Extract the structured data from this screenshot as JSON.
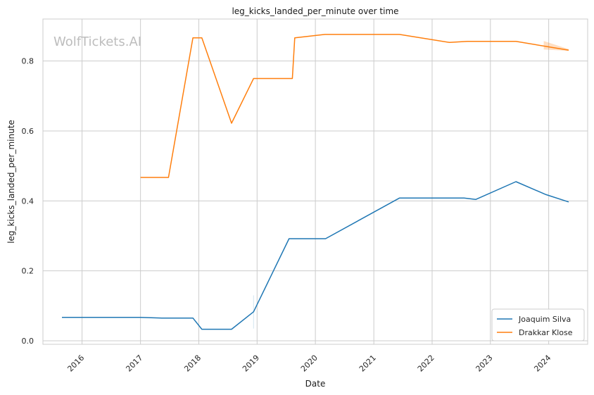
{
  "chart_data": {
    "type": "line",
    "title": "leg_kicks_landed_per_minute over time",
    "xlabel": "Date",
    "ylabel": "leg_kicks_landed_per_minute",
    "xlim": [
      "2015-05-01",
      "2024-09-01"
    ],
    "ylim": [
      -0.01,
      0.92
    ],
    "x_ticks": [
      "2016",
      "2017",
      "2018",
      "2019",
      "2020",
      "2021",
      "2022",
      "2023",
      "2024"
    ],
    "y_ticks": [
      "0.0",
      "0.2",
      "0.4",
      "0.6",
      "0.8"
    ],
    "grid": true,
    "legend_position": "lower-right",
    "watermark": "WolfTickets.AI",
    "series": [
      {
        "name": "Joaquim Silva",
        "color": "#1f77b4",
        "points": [
          [
            "2015-08-28",
            0.067
          ],
          [
            "2017-01-01",
            0.067
          ],
          [
            "2017-05-15",
            0.065
          ],
          [
            "2017-11-25",
            0.065
          ],
          [
            "2018-01-20",
            0.033
          ],
          [
            "2018-07-25",
            0.033
          ],
          [
            "2018-12-10",
            0.083
          ],
          [
            "2019-07-20",
            0.292
          ],
          [
            "2020-03-05",
            0.292
          ],
          [
            "2021-06-10",
            0.408
          ],
          [
            "2022-07-20",
            0.408
          ],
          [
            "2022-10-01",
            0.404
          ],
          [
            "2023-06-10",
            0.455
          ],
          [
            "2023-12-15",
            0.418
          ],
          [
            "2024-05-05",
            0.397
          ]
        ]
      },
      {
        "name": "Drakkar Klose",
        "color": "#ff7f0e",
        "points": [
          [
            "2017-01-01",
            0.467
          ],
          [
            "2017-06-25",
            0.467
          ],
          [
            "2017-11-25",
            0.866
          ],
          [
            "2018-01-20",
            0.866
          ],
          [
            "2018-07-25",
            0.622
          ],
          [
            "2018-12-10",
            0.75
          ],
          [
            "2019-08-10",
            0.75
          ],
          [
            "2019-08-25",
            0.866
          ],
          [
            "2020-03-01",
            0.876
          ],
          [
            "2021-06-10",
            0.876
          ],
          [
            "2022-04-20",
            0.853
          ],
          [
            "2022-08-10",
            0.856
          ],
          [
            "2023-06-10",
            0.856
          ],
          [
            "2024-05-05",
            0.831
          ]
        ]
      }
    ]
  }
}
